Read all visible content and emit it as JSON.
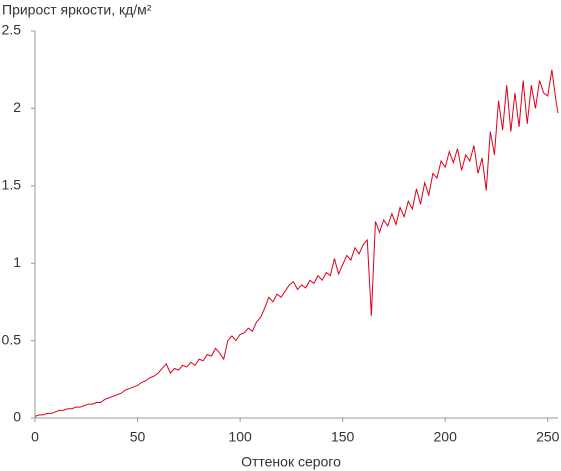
{
  "chart_data": {
    "type": "line",
    "title": "Прирост яркости, кд/м²",
    "x_label": "Оттенок серого",
    "x": [
      0,
      2,
      4,
      6,
      8,
      10,
      12,
      14,
      16,
      18,
      20,
      22,
      24,
      26,
      28,
      30,
      32,
      34,
      36,
      38,
      40,
      42,
      44,
      46,
      48,
      50,
      52,
      54,
      56,
      58,
      60,
      62,
      64,
      66,
      68,
      70,
      72,
      74,
      76,
      78,
      80,
      82,
      84,
      86,
      88,
      90,
      92,
      94,
      96,
      98,
      100,
      102,
      104,
      106,
      108,
      110,
      112,
      114,
      116,
      118,
      120,
      122,
      124,
      126,
      128,
      130,
      132,
      134,
      136,
      138,
      140,
      142,
      144,
      146,
      148,
      150,
      152,
      154,
      156,
      158,
      160,
      162,
      164,
      166,
      168,
      170,
      172,
      174,
      176,
      178,
      180,
      182,
      184,
      186,
      188,
      190,
      192,
      194,
      196,
      198,
      200,
      202,
      204,
      206,
      208,
      210,
      212,
      214,
      216,
      218,
      220,
      222,
      224,
      226,
      228,
      230,
      232,
      234,
      236,
      238,
      240,
      242,
      244,
      246,
      248,
      250,
      252,
      254,
      255
    ],
    "series": [
      {
        "color": "#e0001b",
        "values": [
          0.01,
          0.02,
          0.02,
          0.03,
          0.03,
          0.04,
          0.05,
          0.05,
          0.06,
          0.06,
          0.07,
          0.07,
          0.08,
          0.09,
          0.09,
          0.1,
          0.1,
          0.12,
          0.13,
          0.14,
          0.15,
          0.16,
          0.18,
          0.19,
          0.2,
          0.21,
          0.23,
          0.24,
          0.26,
          0.27,
          0.29,
          0.32,
          0.35,
          0.29,
          0.32,
          0.31,
          0.34,
          0.33,
          0.36,
          0.34,
          0.38,
          0.37,
          0.41,
          0.4,
          0.45,
          0.42,
          0.38,
          0.5,
          0.53,
          0.5,
          0.54,
          0.55,
          0.58,
          0.56,
          0.62,
          0.65,
          0.71,
          0.78,
          0.75,
          0.8,
          0.78,
          0.82,
          0.86,
          0.88,
          0.83,
          0.86,
          0.84,
          0.89,
          0.87,
          0.92,
          0.89,
          0.94,
          0.92,
          1.03,
          0.93,
          0.99,
          1.05,
          1.02,
          1.1,
          1.06,
          1.12,
          1.15,
          0.66,
          1.27,
          1.2,
          1.28,
          1.24,
          1.32,
          1.25,
          1.36,
          1.3,
          1.4,
          1.35,
          1.48,
          1.38,
          1.52,
          1.44,
          1.58,
          1.55,
          1.66,
          1.62,
          1.72,
          1.65,
          1.74,
          1.6,
          1.7,
          1.66,
          1.76,
          1.58,
          1.68,
          1.47,
          1.85,
          1.7,
          2.05,
          1.86,
          2.15,
          1.85,
          2.1,
          1.88,
          2.18,
          1.9,
          2.15,
          2.0,
          2.18,
          2.1,
          2.08,
          2.25,
          2.05,
          1.97
        ]
      }
    ],
    "xlim": [
      0,
      255
    ],
    "ylim": [
      0,
      2.5
    ],
    "xticks": [
      0,
      50,
      100,
      150,
      200,
      250
    ],
    "yticks": [
      0,
      0.5,
      1,
      1.5,
      2,
      2.5
    ]
  }
}
